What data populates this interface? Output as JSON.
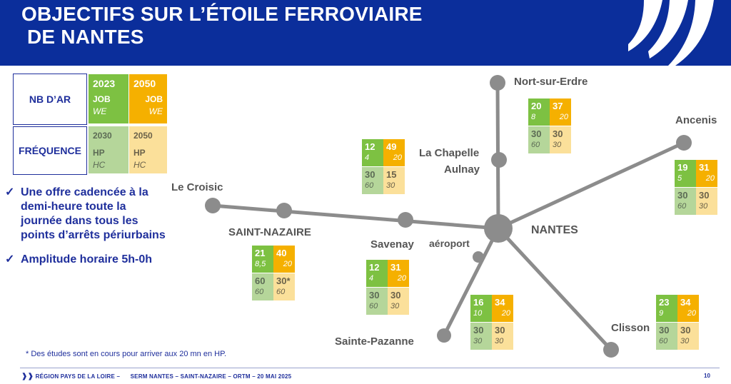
{
  "header": {
    "title_line1": "OBJECTIFS SUR L’ÉTOILE FERROVIAIRE",
    "title_line2": "DE NANTES"
  },
  "legend": {
    "nb_ar_label": "NB D’AR",
    "frequence_label": "FRÉQUENCE",
    "year_2023": "2023",
    "year_2050": "2050",
    "job": "JOB",
    "we": "WE",
    "freq_2030": "2030",
    "freq_2050": "2050",
    "hp": "HP",
    "hc": "HC"
  },
  "bullets": [
    "Une offre cadencée à la demi-heure toute la journée dans tous les points d’arrêts périurbains",
    "Amplitude horaire 5h-0h"
  ],
  "stations": {
    "nort": "Nort-sur-Erdre",
    "chapelle_1": "La Chapelle",
    "chapelle_2": "Aulnay",
    "ancenis": "Ancenis",
    "croisic": "Le Croisic",
    "saint_nazaire": "SAINT-NAZAIRE",
    "savenay": "Savenay",
    "aeroport": "aéroport",
    "nantes": "NANTES",
    "sainte_pazanne": "Sainte-Pazanne",
    "clisson": "Clisson"
  },
  "tables": {
    "nort": {
      "job2023": "20",
      "we2023": "8",
      "job2050": "37",
      "we2050": "20",
      "hp2030": "30",
      "hc2030": "60",
      "hp2050": "30",
      "hc2050": "30"
    },
    "chapelle": {
      "job2023": "12",
      "we2023": "4",
      "job2050": "49",
      "we2050": "20",
      "hp2030": "30",
      "hc2030": "60",
      "hp2050": "15",
      "hc2050": "30"
    },
    "ancenis": {
      "job2023": "19",
      "we2023": "5",
      "job2050": "31",
      "we2050": "20",
      "hp2030": "30",
      "hc2030": "60",
      "hp2050": "30",
      "hc2050": "30"
    },
    "saint_nazaire": {
      "job2023": "21",
      "we2023": "8,5",
      "job2050": "40",
      "we2050": "20",
      "hp2030": "60",
      "hc2030": "60",
      "hp2050": "30*",
      "hc2050": "60"
    },
    "savenay": {
      "job2023": "12",
      "we2023": "4",
      "job2050": "31",
      "we2050": "20",
      "hp2030": "30",
      "hc2030": "60",
      "hp2050": "30",
      "hc2050": "30"
    },
    "sainte_pazanne": {
      "job2023": "16",
      "we2023": "10",
      "job2050": "34",
      "we2050": "20",
      "hp2030": "30",
      "hc2030": "30",
      "hp2050": "30",
      "hc2050": "30"
    },
    "clisson": {
      "job2023": "23",
      "we2023": "9",
      "job2050": "34",
      "we2050": "20",
      "hp2030": "30",
      "hc2030": "60",
      "hp2050": "30",
      "hc2050": "30"
    }
  },
  "footnote": "* Des études sont en cours pour arriver aux 20 mn en HP.",
  "footer": {
    "text": "RÉGION PAYS DE LA LOIRE –      SERM NANTES – SAINT-NAZAIRE – ORTM – 20 MAI 2025",
    "page": "10"
  },
  "colors": {
    "header_blue": "#0b2e9b",
    "green": "#7dc142",
    "orange": "#f5b000",
    "light_green": "#b5d69a",
    "light_orange": "#fbe09a",
    "line_grey": "#8c8c8c"
  }
}
